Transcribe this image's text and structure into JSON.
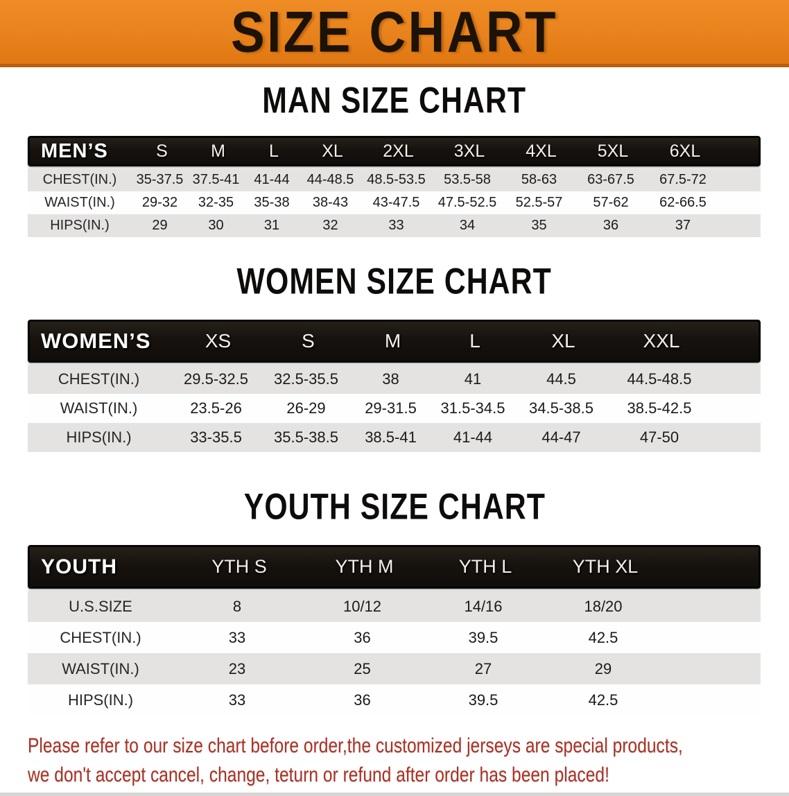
{
  "banner": {
    "title": "SIZE CHART"
  },
  "tables": [
    {
      "id": "men",
      "title": "MAN SIZE CHART",
      "header_label": "MEN’S",
      "columns": [
        "S",
        "M",
        "L",
        "XL",
        "2XL",
        "3XL",
        "4XL",
        "5XL",
        "6XL"
      ],
      "rows": [
        {
          "label": "CHEST(IN.)",
          "values": [
            "35-37.5",
            "37.5-41",
            "41-44",
            "44-48.5",
            "48.5-53.5",
            "53.5-58",
            "58-63",
            "63-67.5",
            "67.5-72"
          ]
        },
        {
          "label": "WAIST(IN.)",
          "values": [
            "29-32",
            "32-35",
            "35-38",
            "38-43",
            "43-47.5",
            "47.5-52.5",
            "52.5-57",
            "57-62",
            "62-66.5"
          ]
        },
        {
          "label": "HIPS(IN.)",
          "values": [
            "29",
            "30",
            "31",
            "32",
            "33",
            "34",
            "35",
            "36",
            "37"
          ]
        }
      ]
    },
    {
      "id": "women",
      "title": "WOMEN SIZE CHART",
      "header_label": "WOMEN’S",
      "columns": [
        "XS",
        "S",
        "M",
        "L",
        "XL",
        "XXL"
      ],
      "rows": [
        {
          "label": "CHEST(IN.)",
          "values": [
            "29.5-32.5",
            "32.5-35.5",
            "38",
            "41",
            "44.5",
            "44.5-48.5"
          ]
        },
        {
          "label": "WAIST(IN.)",
          "values": [
            "23.5-26",
            "26-29",
            "29-31.5",
            "31.5-34.5",
            "34.5-38.5",
            "38.5-42.5"
          ]
        },
        {
          "label": "HIPS(IN.)",
          "values": [
            "33-35.5",
            "35.5-38.5",
            "38.5-41",
            "41-44",
            "44-47",
            "47-50"
          ]
        }
      ]
    },
    {
      "id": "youth",
      "title": "YOUTH SIZE CHART",
      "header_label": "YOUTH",
      "columns": [
        "YTH S",
        "YTH M",
        "YTH L",
        "YTH XL"
      ],
      "rows": [
        {
          "label": "U.S.SIZE",
          "values": [
            "8",
            "10/12",
            "14/16",
            "18/20"
          ]
        },
        {
          "label": "CHEST(IN.)",
          "values": [
            "33",
            "36",
            "39.5",
            "42.5"
          ]
        },
        {
          "label": "WAIST(IN.)",
          "values": [
            "23",
            "25",
            "27",
            "29"
          ]
        },
        {
          "label": "HIPS(IN.)",
          "values": [
            "33",
            "36",
            "39.5",
            "42.5"
          ]
        }
      ]
    }
  ],
  "footer": {
    "lines": [
      "Please refer to our size chart before order,the customized jerseys are special products,",
      "we don't accept cancel, change, teturn or refund after order has been placed!"
    ]
  },
  "colors": {
    "banner_orange": "#e8821c",
    "banner_edge": "#b95d12",
    "bar_black": "#17120e",
    "row_gray": "#e4e3e1",
    "row_white": "#fefefe",
    "notice_red": "#a93327"
  }
}
